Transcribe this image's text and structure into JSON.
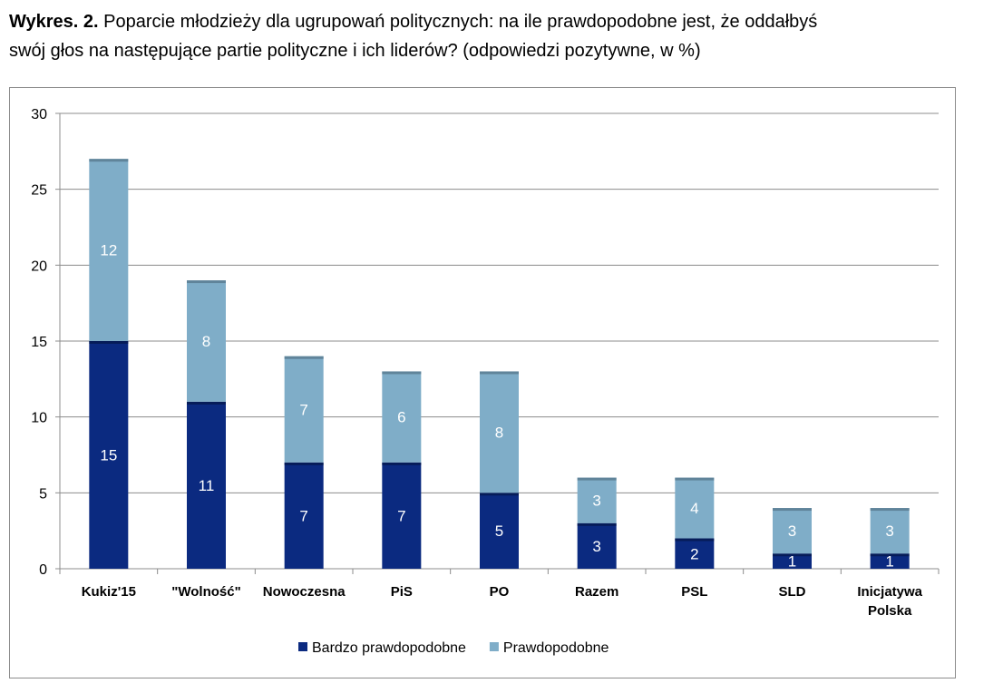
{
  "caption": {
    "prefix": "Wykres. 2.",
    "line1": " Poparcie młodzieży dla ugrupowań politycznych: na ile prawdopodobne jest, że oddałbyś",
    "line2": "swój głos na następujące partie polityczne i ich liderów? (odpowiedzi pozytywne, w %)"
  },
  "colors": {
    "series1": "#0b2a80",
    "series2": "#7fadc8",
    "grid": "#8c8c8c"
  },
  "chart_data": {
    "type": "bar",
    "stacked": true,
    "title": "",
    "xlabel": "",
    "ylabel": "",
    "ylim": [
      0,
      30
    ],
    "yticks": [
      0,
      5,
      10,
      15,
      20,
      25,
      30
    ],
    "grid": true,
    "legend": "bottom",
    "categories": [
      [
        "Kukiz'15"
      ],
      [
        "\"Wolność\""
      ],
      [
        "Nowoczesna"
      ],
      [
        "PiS"
      ],
      [
        "PO"
      ],
      [
        "Razem"
      ],
      [
        "PSL"
      ],
      [
        "SLD"
      ],
      [
        "Inicjatywa",
        "Polska"
      ]
    ],
    "series": [
      {
        "name": "Bardzo prawdopodobne",
        "values": [
          15,
          11,
          7,
          7,
          5,
          3,
          2,
          1,
          1
        ]
      },
      {
        "name": "Prawdopodobne",
        "values": [
          12,
          8,
          7,
          6,
          8,
          3,
          4,
          3,
          3
        ]
      }
    ]
  }
}
